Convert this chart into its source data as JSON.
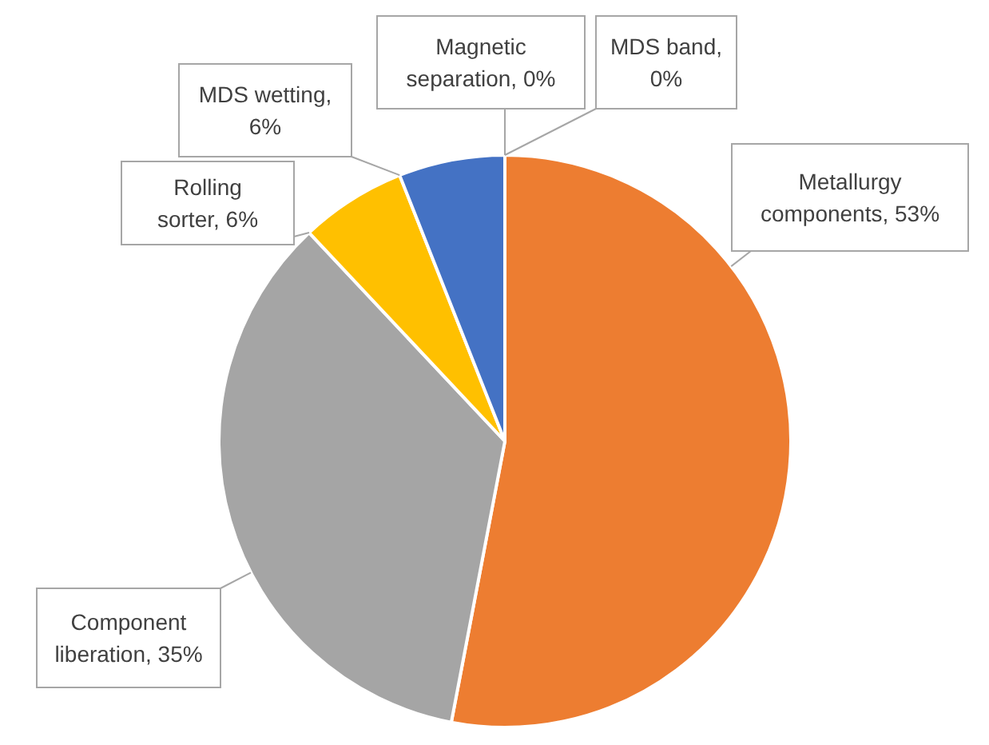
{
  "chart_data": {
    "type": "pie",
    "categories": [
      "Metallurgy components",
      "Component liberation",
      "Rolling sorter",
      "MDS wetting",
      "Magnetic separation",
      "MDS band"
    ],
    "values": [
      53,
      35,
      6,
      6,
      0,
      0
    ],
    "value_labels": [
      ", 53%",
      ", 35%",
      ", 6%",
      ", 6%",
      ", 0%",
      ", 0%"
    ],
    "colors": [
      "#ed7d31",
      "#a5a5a5",
      "#ffc000",
      "#4472c4",
      "#5b9bd5",
      "#70ad47"
    ]
  }
}
